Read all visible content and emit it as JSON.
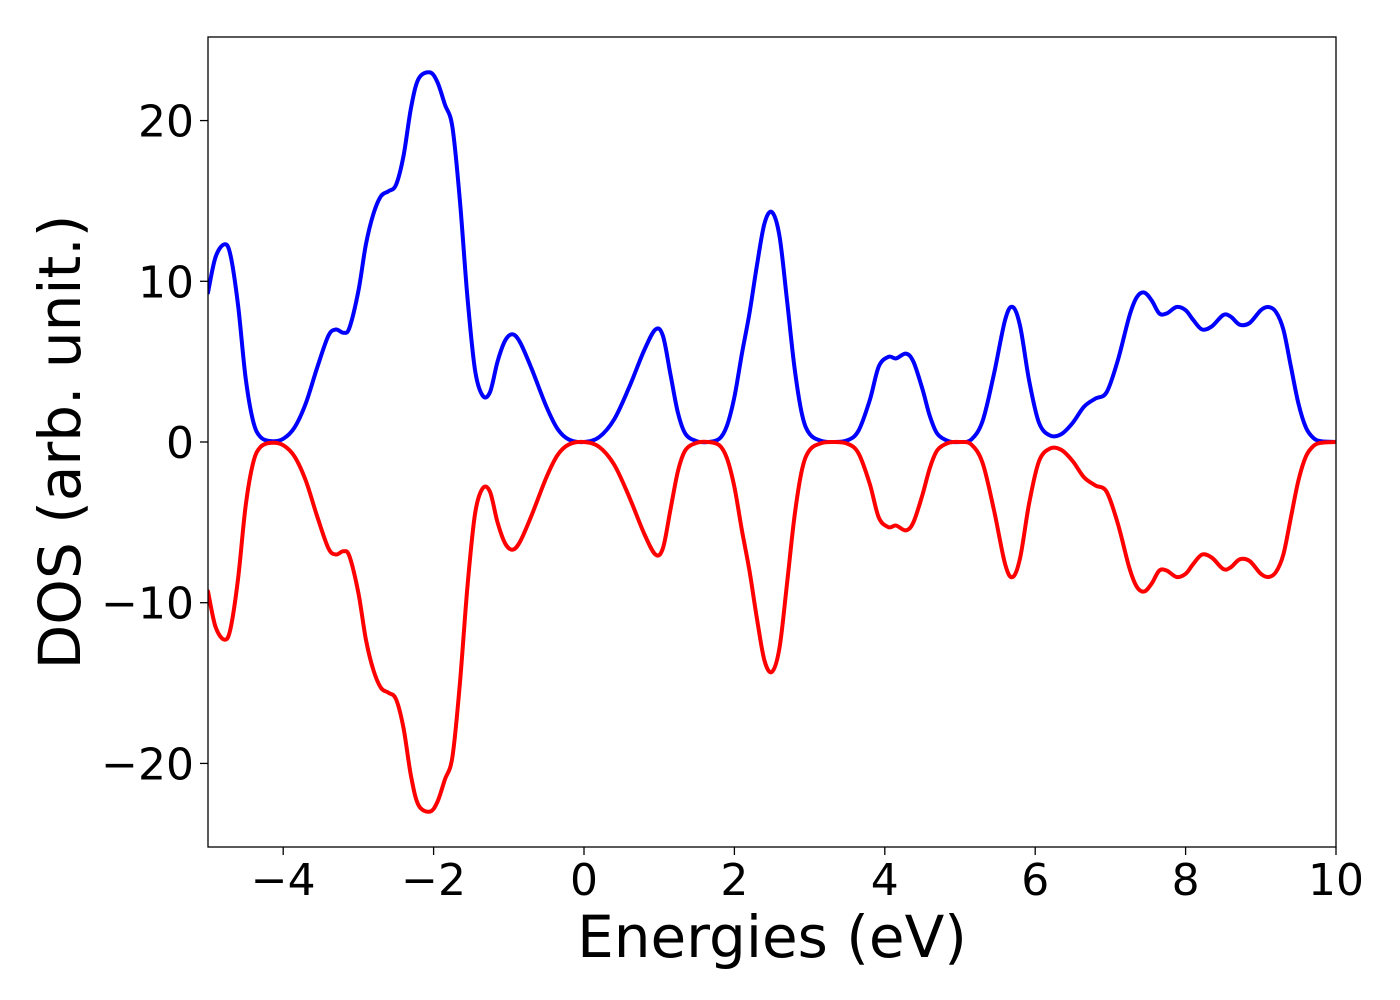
{
  "chart_data": {
    "type": "line",
    "title": "",
    "xlabel": "Energies (eV)",
    "ylabel": "DOS (arb. unit.)",
    "xlim": [
      -5,
      10
    ],
    "ylim": [
      -25.2,
      25.2
    ],
    "xticks": [
      -4,
      -2,
      0,
      2,
      4,
      6,
      8,
      10
    ],
    "xtick_labels": [
      "−4",
      "−2",
      "0",
      "2",
      "4",
      "6",
      "8",
      "10"
    ],
    "yticks": [
      -20,
      -10,
      0,
      10,
      20
    ],
    "ytick_labels": [
      "−20",
      "−10",
      "0",
      "10",
      "20"
    ],
    "grid": false,
    "legend": "none",
    "series": [
      {
        "color": "#0000ff",
        "points": [
          [
            -5.0,
            9.3
          ],
          [
            -4.9,
            11.5
          ],
          [
            -4.78,
            12.3
          ],
          [
            -4.7,
            11.6
          ],
          [
            -4.6,
            8.5
          ],
          [
            -4.5,
            4.0
          ],
          [
            -4.4,
            1.3
          ],
          [
            -4.3,
            0.3
          ],
          [
            -4.15,
            0.05
          ],
          [
            -4.0,
            0.2
          ],
          [
            -3.85,
            0.9
          ],
          [
            -3.7,
            2.4
          ],
          [
            -3.55,
            4.6
          ],
          [
            -3.4,
            6.6
          ],
          [
            -3.3,
            7.0
          ],
          [
            -3.2,
            6.8
          ],
          [
            -3.12,
            7.1
          ],
          [
            -3.0,
            9.4
          ],
          [
            -2.9,
            12.3
          ],
          [
            -2.8,
            14.2
          ],
          [
            -2.7,
            15.3
          ],
          [
            -2.6,
            15.6
          ],
          [
            -2.5,
            16.0
          ],
          [
            -2.4,
            17.8
          ],
          [
            -2.3,
            20.8
          ],
          [
            -2.2,
            22.6
          ],
          [
            -2.05,
            23.0
          ],
          [
            -1.95,
            22.4
          ],
          [
            -1.85,
            21.0
          ],
          [
            -1.75,
            19.6
          ],
          [
            -1.65,
            15.0
          ],
          [
            -1.55,
            9.0
          ],
          [
            -1.45,
            4.5
          ],
          [
            -1.35,
            2.9
          ],
          [
            -1.25,
            3.1
          ],
          [
            -1.15,
            5.0
          ],
          [
            -1.05,
            6.3
          ],
          [
            -0.95,
            6.7
          ],
          [
            -0.85,
            6.2
          ],
          [
            -0.7,
            4.6
          ],
          [
            -0.5,
            2.2
          ],
          [
            -0.35,
            0.8
          ],
          [
            -0.2,
            0.15
          ],
          [
            0.0,
            0.0
          ],
          [
            0.2,
            0.3
          ],
          [
            0.4,
            1.4
          ],
          [
            0.6,
            3.4
          ],
          [
            0.8,
            5.7
          ],
          [
            0.95,
            7.0
          ],
          [
            1.05,
            6.6
          ],
          [
            1.15,
            4.2
          ],
          [
            1.25,
            1.8
          ],
          [
            1.35,
            0.5
          ],
          [
            1.5,
            0.05
          ],
          [
            1.65,
            0.0
          ],
          [
            1.8,
            0.2
          ],
          [
            1.9,
            1.0
          ],
          [
            2.0,
            2.8
          ],
          [
            2.1,
            5.5
          ],
          [
            2.2,
            8.0
          ],
          [
            2.3,
            11.0
          ],
          [
            2.4,
            13.6
          ],
          [
            2.5,
            14.3
          ],
          [
            2.6,
            12.8
          ],
          [
            2.7,
            8.8
          ],
          [
            2.8,
            4.6
          ],
          [
            2.9,
            1.7
          ],
          [
            3.0,
            0.5
          ],
          [
            3.15,
            0.08
          ],
          [
            3.3,
            0.0
          ],
          [
            3.5,
            0.1
          ],
          [
            3.65,
            0.7
          ],
          [
            3.8,
            2.6
          ],
          [
            3.92,
            4.7
          ],
          [
            4.05,
            5.3
          ],
          [
            4.15,
            5.2
          ],
          [
            4.28,
            5.5
          ],
          [
            4.38,
            5.0
          ],
          [
            4.5,
            3.3
          ],
          [
            4.6,
            1.6
          ],
          [
            4.7,
            0.5
          ],
          [
            4.85,
            0.05
          ],
          [
            5.0,
            0.0
          ],
          [
            5.15,
            0.15
          ],
          [
            5.3,
            1.3
          ],
          [
            5.45,
            4.2
          ],
          [
            5.6,
            7.6
          ],
          [
            5.7,
            8.4
          ],
          [
            5.8,
            7.2
          ],
          [
            5.92,
            3.8
          ],
          [
            6.05,
            1.2
          ],
          [
            6.2,
            0.4
          ],
          [
            6.35,
            0.5
          ],
          [
            6.5,
            1.2
          ],
          [
            6.65,
            2.2
          ],
          [
            6.8,
            2.7
          ],
          [
            6.95,
            3.1
          ],
          [
            7.1,
            5.1
          ],
          [
            7.25,
            7.8
          ],
          [
            7.35,
            9.0
          ],
          [
            7.45,
            9.3
          ],
          [
            7.55,
            8.8
          ],
          [
            7.65,
            8.0
          ],
          [
            7.75,
            8.0
          ],
          [
            7.88,
            8.4
          ],
          [
            8.0,
            8.2
          ],
          [
            8.1,
            7.6
          ],
          [
            8.22,
            7.0
          ],
          [
            8.35,
            7.2
          ],
          [
            8.5,
            7.9
          ],
          [
            8.6,
            7.8
          ],
          [
            8.72,
            7.3
          ],
          [
            8.85,
            7.4
          ],
          [
            9.0,
            8.2
          ],
          [
            9.1,
            8.4
          ],
          [
            9.2,
            8.1
          ],
          [
            9.3,
            7.0
          ],
          [
            9.4,
            4.7
          ],
          [
            9.5,
            2.4
          ],
          [
            9.6,
            0.9
          ],
          [
            9.7,
            0.25
          ],
          [
            9.8,
            0.05
          ],
          [
            10.0,
            0.0
          ]
        ]
      },
      {
        "color": "#ff0000",
        "points": [
          [
            -5.0,
            -9.3
          ],
          [
            -4.9,
            -11.5
          ],
          [
            -4.78,
            -12.3
          ],
          [
            -4.7,
            -11.6
          ],
          [
            -4.6,
            -8.5
          ],
          [
            -4.5,
            -4.0
          ],
          [
            -4.4,
            -1.3
          ],
          [
            -4.3,
            -0.3
          ],
          [
            -4.15,
            -0.05
          ],
          [
            -4.0,
            -0.2
          ],
          [
            -3.85,
            -0.9
          ],
          [
            -3.7,
            -2.4
          ],
          [
            -3.55,
            -4.6
          ],
          [
            -3.4,
            -6.6
          ],
          [
            -3.3,
            -7.0
          ],
          [
            -3.2,
            -6.8
          ],
          [
            -3.12,
            -7.1
          ],
          [
            -3.0,
            -9.4
          ],
          [
            -2.9,
            -12.3
          ],
          [
            -2.8,
            -14.2
          ],
          [
            -2.7,
            -15.3
          ],
          [
            -2.6,
            -15.6
          ],
          [
            -2.5,
            -16.0
          ],
          [
            -2.4,
            -17.8
          ],
          [
            -2.3,
            -20.8
          ],
          [
            -2.2,
            -22.6
          ],
          [
            -2.05,
            -23.0
          ],
          [
            -1.95,
            -22.4
          ],
          [
            -1.85,
            -21.0
          ],
          [
            -1.75,
            -19.6
          ],
          [
            -1.65,
            -15.0
          ],
          [
            -1.55,
            -9.0
          ],
          [
            -1.45,
            -4.5
          ],
          [
            -1.35,
            -2.9
          ],
          [
            -1.25,
            -3.1
          ],
          [
            -1.15,
            -5.0
          ],
          [
            -1.05,
            -6.3
          ],
          [
            -0.95,
            -6.7
          ],
          [
            -0.85,
            -6.2
          ],
          [
            -0.7,
            -4.6
          ],
          [
            -0.5,
            -2.2
          ],
          [
            -0.35,
            -0.8
          ],
          [
            -0.2,
            -0.15
          ],
          [
            0.0,
            0.0
          ],
          [
            0.2,
            -0.3
          ],
          [
            0.4,
            -1.4
          ],
          [
            0.6,
            -3.4
          ],
          [
            0.8,
            -5.7
          ],
          [
            0.95,
            -7.0
          ],
          [
            1.05,
            -6.6
          ],
          [
            1.15,
            -4.2
          ],
          [
            1.25,
            -1.8
          ],
          [
            1.35,
            -0.5
          ],
          [
            1.5,
            -0.05
          ],
          [
            1.65,
            0.0
          ],
          [
            1.8,
            -0.2
          ],
          [
            1.9,
            -1.0
          ],
          [
            2.0,
            -2.8
          ],
          [
            2.1,
            -5.5
          ],
          [
            2.2,
            -8.0
          ],
          [
            2.3,
            -11.0
          ],
          [
            2.4,
            -13.6
          ],
          [
            2.5,
            -14.3
          ],
          [
            2.6,
            -12.8
          ],
          [
            2.7,
            -8.8
          ],
          [
            2.8,
            -4.6
          ],
          [
            2.9,
            -1.7
          ],
          [
            3.0,
            -0.5
          ],
          [
            3.15,
            -0.08
          ],
          [
            3.3,
            0.0
          ],
          [
            3.5,
            -0.1
          ],
          [
            3.65,
            -0.7
          ],
          [
            3.8,
            -2.6
          ],
          [
            3.92,
            -4.7
          ],
          [
            4.05,
            -5.3
          ],
          [
            4.15,
            -5.2
          ],
          [
            4.28,
            -5.5
          ],
          [
            4.38,
            -5.0
          ],
          [
            4.5,
            -3.3
          ],
          [
            4.6,
            -1.6
          ],
          [
            4.7,
            -0.5
          ],
          [
            4.85,
            -0.05
          ],
          [
            5.0,
            0.0
          ],
          [
            5.15,
            -0.15
          ],
          [
            5.3,
            -1.3
          ],
          [
            5.45,
            -4.2
          ],
          [
            5.6,
            -7.6
          ],
          [
            5.7,
            -8.4
          ],
          [
            5.8,
            -7.2
          ],
          [
            5.92,
            -3.8
          ],
          [
            6.05,
            -1.2
          ],
          [
            6.2,
            -0.4
          ],
          [
            6.35,
            -0.5
          ],
          [
            6.5,
            -1.2
          ],
          [
            6.65,
            -2.2
          ],
          [
            6.8,
            -2.7
          ],
          [
            6.95,
            -3.1
          ],
          [
            7.1,
            -5.1
          ],
          [
            7.25,
            -7.8
          ],
          [
            7.35,
            -9.0
          ],
          [
            7.45,
            -9.3
          ],
          [
            7.55,
            -8.8
          ],
          [
            7.65,
            -8.0
          ],
          [
            7.75,
            -8.0
          ],
          [
            7.88,
            -8.4
          ],
          [
            8.0,
            -8.2
          ],
          [
            8.1,
            -7.6
          ],
          [
            8.22,
            -7.0
          ],
          [
            8.35,
            -7.2
          ],
          [
            8.5,
            -7.9
          ],
          [
            8.6,
            -7.8
          ],
          [
            8.72,
            -7.3
          ],
          [
            8.85,
            -7.4
          ],
          [
            9.0,
            -8.2
          ],
          [
            9.1,
            -8.4
          ],
          [
            9.2,
            -8.1
          ],
          [
            9.3,
            -7.0
          ],
          [
            9.4,
            -4.7
          ],
          [
            9.5,
            -2.4
          ],
          [
            9.6,
            -0.9
          ],
          [
            9.7,
            -0.25
          ],
          [
            9.8,
            -0.05
          ],
          [
            10.0,
            0.0
          ]
        ]
      }
    ]
  }
}
